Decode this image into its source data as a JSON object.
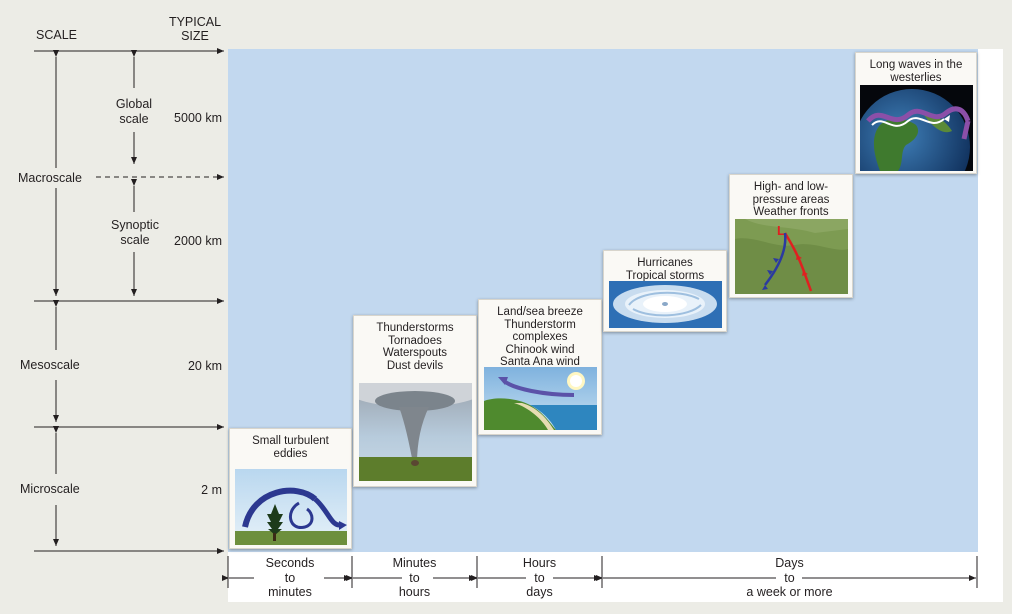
{
  "headers": {
    "scale": "SCALE",
    "typical_size": "TYPICAL\nSIZE"
  },
  "scales": [
    {
      "name": "Macroscale",
      "sub": [
        {
          "name": "Global\nscale",
          "size": "5000 km"
        },
        {
          "name": "Synoptic\nscale",
          "size": "2000 km"
        }
      ]
    },
    {
      "name": "Mesoscale",
      "size": "20 km"
    },
    {
      "name": "Microscale",
      "size": "2 m"
    }
  ],
  "phenomena": [
    {
      "caption": "Small turbulent\neddies",
      "image": "eddy-icon"
    },
    {
      "caption": "Thunderstorms\nTornadoes\nWaterspouts\nDust devils",
      "image": "tornado-icon"
    },
    {
      "caption": "Land/sea breeze\nThunderstorm\ncomplexes\nChinook wind\nSanta Ana wind",
      "image": "sea-breeze-icon"
    },
    {
      "caption": "Hurricanes\nTropical storms",
      "image": "hurricane-icon"
    },
    {
      "caption": "High- and low-\npressure areas\nWeather fronts",
      "image": "weather-front-map-icon"
    },
    {
      "caption": "Long waves in the\nwesterlies",
      "image": "globe-icon"
    }
  ],
  "time_scales": [
    {
      "label": "Seconds\nto\nminutes"
    },
    {
      "label": "Minutes\nto\nhours"
    },
    {
      "label": "Hours\nto\ndays"
    },
    {
      "label": "Days\nto\na week or more"
    }
  ],
  "colors": {
    "plot_background": "#c2d8ef",
    "page_background": "#ecece6",
    "ink": "#231f20"
  }
}
